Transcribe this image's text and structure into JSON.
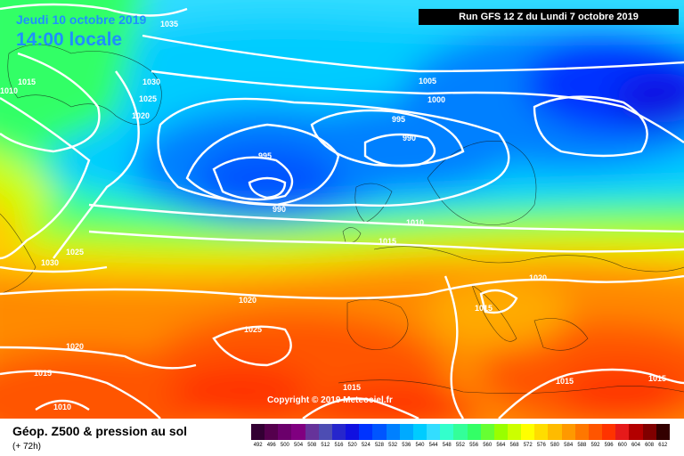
{
  "header": {
    "date": "Jeudi 10 octobre 2019",
    "time": "14:00 locale",
    "run": "Run GFS 12 Z du Lundi 7 octobre 2019"
  },
  "copyright": "Copyright © 2019 Meteociel.fr",
  "footer": {
    "title": "Géop. Z500 & pression au sol",
    "subtitle": "(+ 72h)"
  },
  "isobar_labels": [
    "1035",
    "1010",
    "1015",
    "1030",
    "1025",
    "1020",
    "1005",
    "1000",
    "995",
    "990",
    "995",
    "990",
    "1010",
    "1015",
    "1025",
    "1030",
    "1020",
    "1025",
    "1015",
    "1020",
    "1015",
    "1020",
    "1015",
    "1010",
    "1015",
    "1015"
  ],
  "legend": {
    "values": [
      "492",
      "496",
      "500",
      "504",
      "508",
      "512",
      "516",
      "520",
      "524",
      "528",
      "532",
      "536",
      "540",
      "544",
      "548",
      "552",
      "556",
      "560",
      "564",
      "568",
      "572",
      "576",
      "580",
      "584",
      "588",
      "592",
      "596",
      "600",
      "604",
      "608",
      "612"
    ],
    "colors": [
      "#330033",
      "#55004d",
      "#6b006b",
      "#800080",
      "#66339a",
      "#4d4db3",
      "#2626cc",
      "#1010e0",
      "#0033ff",
      "#0055ff",
      "#0080ff",
      "#00aaff",
      "#00ccff",
      "#33ddff",
      "#33ffcc",
      "#33ff99",
      "#33ff66",
      "#66ff33",
      "#99ff00",
      "#ccff00",
      "#ffff00",
      "#ffdd00",
      "#ffbb00",
      "#ff9900",
      "#ff7700",
      "#ff5500",
      "#ff3300",
      "#e61a1a",
      "#b30000",
      "#800000",
      "#330000"
    ]
  }
}
